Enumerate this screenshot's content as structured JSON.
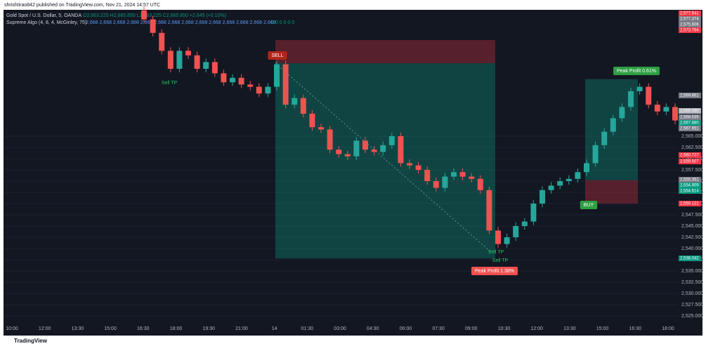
{
  "header": {
    "publisher": "shrishtirao842 published on TradingView.com, Nov 21, 2024 14:57 UTC",
    "symbol": "Gold Spot / U.S. Dollar, 5, OANDA",
    "ohlc": "O2,663.225  H2,665.850  L2,663.225  C2,665.850  +2.645 (+0.10%)",
    "indicator": "Supreme Algo (4, 8, 4, McGinley, 75)",
    "indicator_values": "2,668  2,668  2,668  2,668  2,668  2,668  2,668  2,668  2,668  2,668  2,668  2,668  2,668  2,668",
    "indicator_flags": "0 0 0 0 0 0"
  },
  "footer": {
    "brand": "TradingView"
  },
  "chart_data": {
    "type": "candlestick",
    "categories": [
      "10:00",
      "12:00",
      "13:30",
      "15:00",
      "16:30",
      "18:00",
      "19:30",
      "21:00",
      "14",
      "01:30",
      "03:00",
      "04:30",
      "06:00",
      "07:30",
      "09:00",
      "10:30",
      "12:00",
      "13:30",
      "15:00",
      "16:30",
      "18:00"
    ],
    "open": [
      2593,
      2591,
      2588,
      2584,
      2580,
      2584,
      2583,
      2580,
      2581.5,
      2579,
      2577,
      2578,
      2576.5,
      2576,
      2574.5,
      2576,
      2581,
      2572,
      2573.5,
      2570,
      2567,
      2566.5,
      2562,
      2561,
      2560.5,
      2564,
      2562,
      2561.5,
      2563,
      2565,
      2559,
      2558.5,
      2557.5,
      2555,
      2553.5,
      2556,
      2557,
      2556,
      2555.5,
      2553,
      2544,
      2541,
      2542.5,
      2545,
      2546,
      2550,
      2553,
      2554,
      2555,
      2555.5,
      2557,
      2559,
      2563,
      2566,
      2569,
      2571.5,
      2575,
      2576,
      2572,
      2570.5,
      2571.5
    ],
    "high": [
      2593.8,
      2591.8,
      2588.8,
      2584.8,
      2584.8,
      2584.8,
      2583.8,
      2582.3,
      2582.3,
      2579.8,
      2578.8,
      2578.8,
      2577.3,
      2576.8,
      2576.8,
      2581.8,
      2581.8,
      2574.3,
      2574.3,
      2570.8,
      2567.8,
      2567.3,
      2562.8,
      2561.8,
      2564.8,
      2564.8,
      2562.8,
      2563.8,
      2565.8,
      2565.8,
      2559.8,
      2559.3,
      2558.3,
      2555.8,
      2556.8,
      2557.8,
      2557.8,
      2556.8,
      2556.3,
      2553.8,
      2544.8,
      2543.3,
      2545.8,
      2546.8,
      2550.8,
      2553.8,
      2554.8,
      2555.8,
      2556.3,
      2557.8,
      2559.8,
      2563.8,
      2566.8,
      2569.8,
      2572.3,
      2575.8,
      2576.8,
      2576.8,
      2572.8,
      2572.3,
      2572.3
    ],
    "low": [
      2590.2,
      2587.2,
      2583.2,
      2579.2,
      2579.2,
      2582.2,
      2579.2,
      2579.2,
      2578.2,
      2576.2,
      2576.2,
      2575.7,
      2575.2,
      2573.7,
      2573.7,
      2575.2,
      2571.2,
      2571.2,
      2569.2,
      2566.2,
      2565.7,
      2561.2,
      2560.2,
      2559.7,
      2559.7,
      2561.2,
      2560.7,
      2560.7,
      2562.2,
      2558.2,
      2557.7,
      2556.7,
      2554.2,
      2552.7,
      2552.7,
      2555.2,
      2555.2,
      2554.7,
      2552.2,
      2543.2,
      2540.2,
      2540.2,
      2541.7,
      2544.2,
      2545.2,
      2549.2,
      2552.2,
      2553.2,
      2554.2,
      2554.7,
      2556.2,
      2558.2,
      2562.2,
      2565.2,
      2568.2,
      2570.7,
      2574.2,
      2571.2,
      2569.7,
      2569.7,
      2567.7
    ],
    "close": [
      2591,
      2588,
      2584,
      2580,
      2584,
      2583,
      2580,
      2581.5,
      2579,
      2577,
      2578,
      2576.5,
      2576,
      2574.5,
      2576,
      2581,
      2572,
      2573.5,
      2570,
      2567,
      2566.5,
      2562,
      2561,
      2560.5,
      2564,
      2562,
      2561.5,
      2563,
      2565,
      2559,
      2558.5,
      2557.5,
      2555,
      2553.5,
      2556,
      2557,
      2556,
      2555.5,
      2553,
      2544,
      2541,
      2542.5,
      2545,
      2546,
      2550,
      2553,
      2554,
      2555,
      2555.5,
      2557,
      2559,
      2563,
      2566,
      2569,
      2571.5,
      2575,
      2576,
      2572,
      2570.5,
      2571.5,
      2568.5
    ],
    "up_color": "#26a69a",
    "down_color": "#ef5350",
    "ylim": [
      2523.125,
      2593.125
    ],
    "yticks": [
      {
        "value": 2525,
        "label": "2,525.000"
      },
      {
        "value": 2527.5,
        "label": "2,527.500"
      },
      {
        "value": 2530,
        "label": "2,530.000"
      },
      {
        "value": 2532.5,
        "label": "2,532.500"
      },
      {
        "value": 2535,
        "label": "2,535.000"
      },
      {
        "value": 2537.5,
        "label": "2,537.500"
      },
      {
        "value": 2540,
        "label": "2,540.000"
      },
      {
        "value": 2542.5,
        "label": "2,542.500"
      },
      {
        "value": 2545,
        "label": "2,545.000"
      },
      {
        "value": 2547.5,
        "label": "2,547.500"
      },
      {
        "value": 2550,
        "label": "2,550.000"
      },
      {
        "value": 2552.5,
        "label": "2,552.500"
      },
      {
        "value": 2555,
        "label": "2,555.000"
      },
      {
        "value": 2557.5,
        "label": "2,557.500"
      },
      {
        "value": 2560,
        "label": "2,560.000"
      },
      {
        "value": 2562.5,
        "label": "2,562.500"
      },
      {
        "value": 2565,
        "label": "2,565.000"
      }
    ],
    "positions": [
      {
        "entry": 2581.25,
        "stop": 2586.4,
        "target": 2537.8
      },
      {
        "entry": 2555.2,
        "stop": 2550,
        "target": 2577.7
      }
    ],
    "price_labels": [
      {
        "value": 2577.541,
        "label": "2,577.541",
        "color": "#f23645"
      },
      {
        "value": 2577.374,
        "label": "2,577.374",
        "color": "#787b86"
      },
      {
        "value": 2575.606,
        "label": "2,575.606",
        "color": "#787b86"
      },
      {
        "value": 2573.764,
        "label": "2,573.764",
        "color": "#f23645"
      },
      {
        "value": 2569.861,
        "label": "2,569.861",
        "color": "#787b86"
      },
      {
        "value": 2569.05,
        "label": "2,569.050",
        "color": "#b2b5be"
      },
      {
        "value": 2568.535,
        "label": "2,568.535",
        "color": "#787b86"
      },
      {
        "value": 2567.88,
        "label": "2,567.880",
        "color": "#089981"
      },
      {
        "value": 2567.651,
        "label": "2,567.651",
        "color": "#787b86"
      },
      {
        "value": 2560.727,
        "label": "2,560.727",
        "color": "#f23645"
      },
      {
        "value": 2559.507,
        "label": "2,559.507",
        "color": "#f23645"
      },
      {
        "value": 2555.351,
        "label": "2,555.351",
        "color": "#787b86"
      },
      {
        "value": 2554.909,
        "label": "2,554.909",
        "color": "#089981"
      },
      {
        "value": 2554.614,
        "label": "2,554.614",
        "color": "#089981"
      },
      {
        "value": 2550.121,
        "label": "2,550.121",
        "color": "#f23645"
      },
      {
        "value": 2538.042,
        "label": "2,538.042",
        "color": "#089981"
      }
    ],
    "annotations": [
      "SELL",
      "Sell TP",
      "Sell TP",
      "Sell TP",
      "Peak Profit 1.38%",
      "BUY",
      "Peak Profit 0.61%"
    ]
  }
}
